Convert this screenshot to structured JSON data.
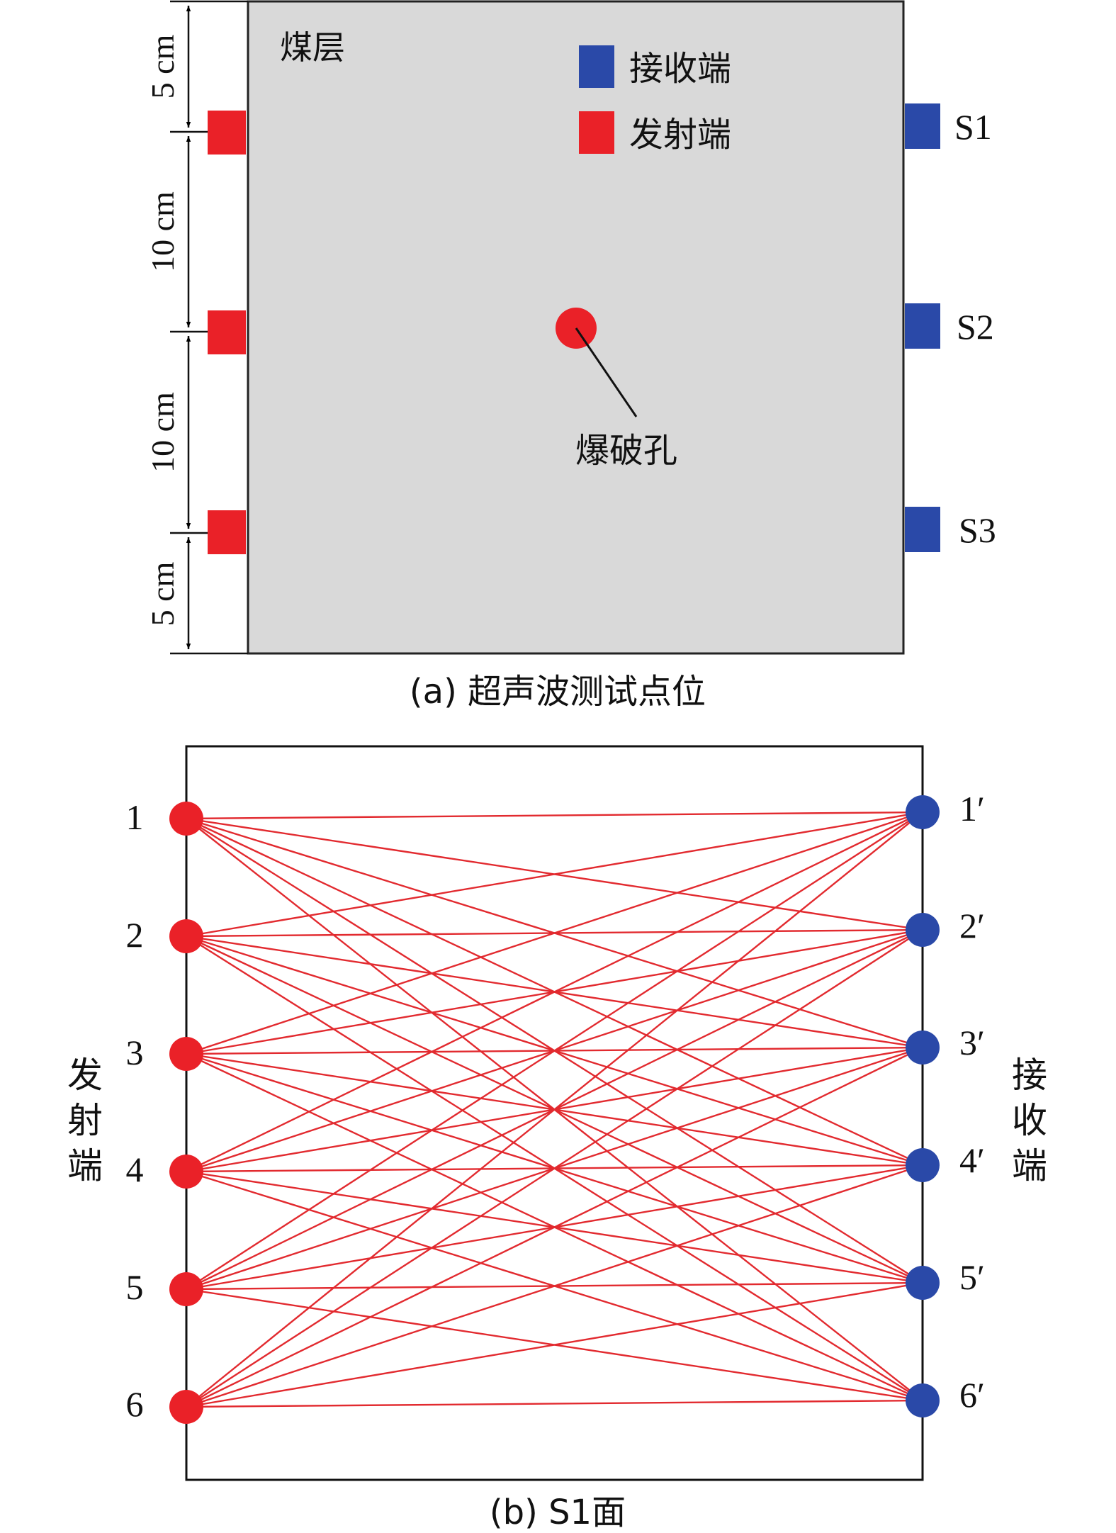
{
  "panel_a": {
    "seam_label": "煤层",
    "legend": {
      "receiver": {
        "label": "接收端",
        "color": "#2a49a8"
      },
      "transmitter": {
        "label": "发射端",
        "color": "#ea2128"
      }
    },
    "receivers": [
      "S1",
      "S2",
      "S3"
    ],
    "dimensions": [
      "5 cm",
      "10 cm",
      "10 cm",
      "5 cm"
    ],
    "blast_hole": {
      "label": "爆破孔",
      "color": "#ea2128"
    },
    "caption": "(a) 超声波测试点位",
    "seam_fill": "#d9d9d9"
  },
  "panel_b": {
    "transmitter_labels": [
      "1",
      "2",
      "3",
      "4",
      "5",
      "6"
    ],
    "receiver_labels": [
      "1′",
      "2′",
      "3′",
      "4′",
      "5′",
      "6′"
    ],
    "left_label": [
      "发",
      "射",
      "端"
    ],
    "right_label": [
      "接",
      "收",
      "端"
    ],
    "caption": "(b) S1面",
    "ray_color": "#e22a2f",
    "transmitter_color": "#ea2128",
    "receiver_color": "#2a49a8"
  }
}
